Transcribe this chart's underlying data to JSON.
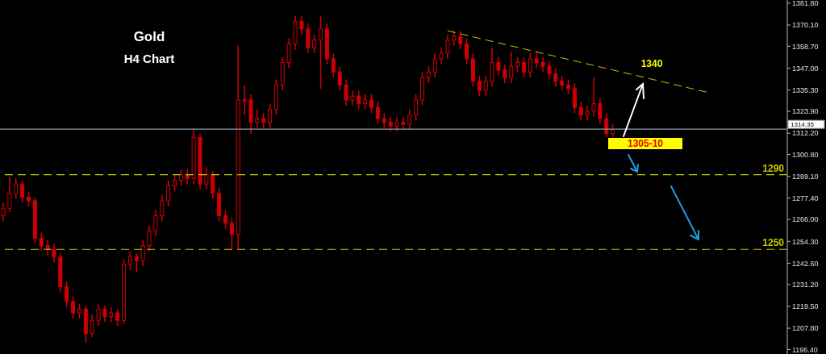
{
  "chart_data": {
    "type": "candlestick",
    "title": "Gold",
    "subtitle": "H4 Chart",
    "categories": [
      null,
      null,
      null,
      null,
      null,
      null,
      null,
      null,
      null,
      null,
      null,
      null,
      null,
      null,
      null,
      null,
      null,
      null,
      null,
      null,
      null,
      null,
      null,
      null,
      null,
      null,
      null,
      null,
      null,
      null,
      null,
      null,
      null,
      null,
      null,
      null,
      null,
      null,
      null,
      null,
      null,
      null,
      null,
      null,
      null,
      null,
      null,
      null,
      null,
      null,
      null,
      null,
      null,
      null,
      null,
      null,
      null,
      null,
      null,
      null,
      null,
      null,
      null,
      null,
      null,
      null,
      null,
      null,
      null,
      null,
      null,
      null,
      null,
      null,
      null,
      null,
      null,
      null,
      null,
      null,
      null,
      null,
      null,
      null,
      null,
      null,
      null,
      null,
      null,
      null,
      null,
      null,
      null,
      null,
      null,
      null,
      null,
      null,
      null,
      null,
      null,
      null,
      null,
      null,
      null,
      null,
      null,
      null,
      null,
      null,
      null,
      null,
      null,
      null,
      null,
      null,
      null,
      null,
      null,
      null,
      null,
      null,
      null,
      null
    ],
    "color": "#d00000",
    "ohlc": [
      [
        1268,
        1275,
        1265,
        1272
      ],
      [
        1272,
        1289,
        1270,
        1280
      ],
      [
        1280,
        1288,
        1277,
        1285
      ],
      [
        1285,
        1287,
        1275,
        1278
      ],
      [
        1278,
        1281,
        1273,
        1276
      ],
      [
        1276,
        1278,
        1253,
        1256
      ],
      [
        1256,
        1259,
        1249,
        1252
      ],
      [
        1252,
        1255,
        1247,
        1250
      ],
      [
        1250,
        1253,
        1243,
        1246
      ],
      [
        1246,
        1248,
        1227,
        1230
      ],
      [
        1230,
        1233,
        1219,
        1222
      ],
      [
        1222,
        1225,
        1213,
        1216
      ],
      [
        1216,
        1221,
        1213,
        1218
      ],
      [
        1218,
        1220,
        1200,
        1205
      ],
      [
        1205,
        1215,
        1203,
        1212
      ],
      [
        1212,
        1221,
        1209,
        1218
      ],
      [
        1218,
        1220,
        1211,
        1214
      ],
      [
        1214,
        1219,
        1211,
        1216
      ],
      [
        1216,
        1218,
        1209,
        1212
      ],
      [
        1212,
        1245,
        1210,
        1242
      ],
      [
        1242,
        1249,
        1239,
        1246
      ],
      [
        1246,
        1248,
        1238,
        1244
      ],
      [
        1244,
        1255,
        1241,
        1252
      ],
      [
        1252,
        1263,
        1249,
        1260
      ],
      [
        1260,
        1271,
        1257,
        1268
      ],
      [
        1268,
        1279,
        1265,
        1276
      ],
      [
        1276,
        1287,
        1273,
        1284
      ],
      [
        1284,
        1290,
        1281,
        1287
      ],
      [
        1287,
        1293,
        1284,
        1290
      ],
      [
        1290,
        1293,
        1285,
        1288
      ],
      [
        1288,
        1315,
        1285,
        1310
      ],
      [
        1310,
        1312,
        1282,
        1285
      ],
      [
        1285,
        1294,
        1282,
        1290
      ],
      [
        1290,
        1292,
        1277,
        1280
      ],
      [
        1280,
        1283,
        1265,
        1268
      ],
      [
        1268,
        1271,
        1261,
        1264
      ],
      [
        1264,
        1267,
        1250,
        1258
      ],
      [
        1258,
        1359,
        1250,
        1330
      ],
      [
        1330,
        1338,
        1322,
        1330
      ],
      [
        1330,
        1333,
        1312,
        1318
      ],
      [
        1318,
        1325,
        1315,
        1320
      ],
      [
        1320,
        1323,
        1315,
        1318
      ],
      [
        1318,
        1328,
        1315,
        1325
      ],
      [
        1325,
        1341,
        1322,
        1338
      ],
      [
        1338,
        1353,
        1335,
        1350
      ],
      [
        1350,
        1363,
        1347,
        1360
      ],
      [
        1360,
        1375,
        1357,
        1372
      ],
      [
        1372,
        1375,
        1365,
        1368
      ],
      [
        1368,
        1371,
        1355,
        1358
      ],
      [
        1358,
        1365,
        1355,
        1362
      ],
      [
        1362,
        1375,
        1336,
        1368
      ],
      [
        1368,
        1371,
        1349,
        1352
      ],
      [
        1352,
        1355,
        1342,
        1345
      ],
      [
        1345,
        1348,
        1335,
        1338
      ],
      [
        1338,
        1341,
        1327,
        1330
      ],
      [
        1330,
        1335,
        1327,
        1332
      ],
      [
        1332,
        1335,
        1325,
        1328
      ],
      [
        1328,
        1333,
        1325,
        1330
      ],
      [
        1330,
        1333,
        1323,
        1326
      ],
      [
        1326,
        1329,
        1317,
        1320
      ],
      [
        1320,
        1323,
        1315,
        1318
      ],
      [
        1318,
        1321,
        1313,
        1316
      ],
      [
        1316,
        1321,
        1313,
        1318
      ],
      [
        1318,
        1321,
        1314,
        1317
      ],
      [
        1317,
        1325,
        1314,
        1322
      ],
      [
        1322,
        1333,
        1319,
        1330
      ],
      [
        1330,
        1345,
        1327,
        1342
      ],
      [
        1342,
        1348,
        1339,
        1345
      ],
      [
        1345,
        1355,
        1342,
        1352
      ],
      [
        1352,
        1358,
        1349,
        1355
      ],
      [
        1355,
        1365,
        1352,
        1362
      ],
      [
        1362,
        1367,
        1359,
        1364
      ],
      [
        1364,
        1367,
        1357,
        1360
      ],
      [
        1360,
        1363,
        1349,
        1352
      ],
      [
        1352,
        1355,
        1337,
        1340
      ],
      [
        1340,
        1343,
        1332,
        1335
      ],
      [
        1335,
        1343,
        1332,
        1340
      ],
      [
        1340,
        1358,
        1337,
        1350
      ],
      [
        1350,
        1353,
        1343,
        1346
      ],
      [
        1346,
        1349,
        1339,
        1342
      ],
      [
        1342,
        1356,
        1339,
        1348
      ],
      [
        1348,
        1353,
        1345,
        1350
      ],
      [
        1350,
        1353,
        1342,
        1345
      ],
      [
        1345,
        1355,
        1342,
        1352
      ],
      [
        1352,
        1356,
        1347,
        1350
      ],
      [
        1350,
        1353,
        1345,
        1348
      ],
      [
        1348,
        1351,
        1341,
        1344
      ],
      [
        1344,
        1347,
        1337,
        1340
      ],
      [
        1340,
        1343,
        1335,
        1338
      ],
      [
        1338,
        1341,
        1333,
        1336
      ],
      [
        1336,
        1339,
        1323,
        1326
      ],
      [
        1326,
        1329,
        1319,
        1322
      ],
      [
        1322,
        1327,
        1319,
        1324
      ],
      [
        1324,
        1342,
        1321,
        1328
      ],
      [
        1328,
        1331,
        1317,
        1320
      ],
      [
        1320,
        1323,
        1310,
        1312
      ],
      [
        1312,
        1317,
        1310,
        1314
      ],
      null,
      null,
      null,
      null,
      null,
      null,
      null,
      null,
      null,
      null,
      null,
      null,
      null,
      null,
      null,
      null,
      null,
      null,
      null,
      null,
      null,
      null,
      null,
      null,
      null,
      null,
      null
    ],
    "series": [
      {
        "type": "line",
        "color": "#c8c800",
        "line_style": "dashed",
        "values": [
          null,
          null,
          null,
          null,
          null,
          null,
          null,
          null,
          null,
          null,
          null,
          null,
          null,
          null,
          null,
          null,
          null,
          null,
          null,
          null,
          null,
          null,
          null,
          null,
          null,
          null,
          null,
          null,
          null,
          null,
          null,
          null,
          null,
          null,
          null,
          null,
          null,
          null,
          null,
          null,
          null,
          null,
          null,
          null,
          null,
          null,
          null,
          null,
          null,
          null,
          null,
          null,
          null,
          null,
          null,
          null,
          null,
          null,
          null,
          null,
          null,
          null,
          null,
          null,
          null,
          null,
          null,
          null,
          null,
          null,
          1367,
          null,
          null,
          null,
          null,
          null,
          null,
          null,
          null,
          null,
          null,
          null,
          null,
          null,
          null,
          null,
          null,
          null,
          null,
          null,
          null,
          null,
          null,
          null,
          null,
          null,
          null,
          null,
          null,
          null,
          null,
          null,
          null,
          null,
          null,
          null,
          null,
          null,
          null,
          null,
          null,
          1334,
          null,
          null,
          null,
          null,
          null,
          null,
          null,
          null,
          null,
          null,
          null,
          null
        ]
      }
    ],
    "ylim": [
      1194,
      1383.5
    ],
    "yticks": [
      {
        "value": 1196.4,
        "label": "1196.40"
      },
      {
        "value": 1207.8,
        "label": "1207.80"
      },
      {
        "value": 1219.5,
        "label": "1219.50"
      },
      {
        "value": 1231.2,
        "label": "1231.20"
      },
      {
        "value": 1242.6,
        "label": "1242.60"
      },
      {
        "value": 1254.3,
        "label": "1254.30"
      },
      {
        "value": 1266,
        "label": "1266.00"
      },
      {
        "value": 1277.4,
        "label": "1277.40"
      },
      {
        "value": 1289.1,
        "label": "1289.10"
      },
      {
        "value": 1300.8,
        "label": "1300.80"
      },
      {
        "value": 1312.2,
        "label": "1312.20"
      },
      {
        "value": 1323.9,
        "label": "1323.90"
      },
      {
        "value": 1335.3,
        "label": "1335.30"
      },
      {
        "value": 1347,
        "label": "1347.00"
      },
      {
        "value": 1358.7,
        "label": "1358.70"
      },
      {
        "value": 1370.1,
        "label": "1370.10"
      },
      {
        "value": 1381.8,
        "label": "1381.80"
      }
    ],
    "tick_labels": "y",
    "ref_lines": [
      {
        "axis": "y",
        "value": 1314.35,
        "label": "1314.35",
        "color": "#8c9bb0",
        "line_style": "solid"
      },
      {
        "axis": "y",
        "value": 1290,
        "label": "1290",
        "color": "#c8c800",
        "line_style": "dashed"
      },
      {
        "axis": "y",
        "value": 1250,
        "label": "1250",
        "color": "#c8c800",
        "line_style": "dashed"
      }
    ],
    "annotations": [
      "1340",
      "1305-10"
    ]
  }
}
